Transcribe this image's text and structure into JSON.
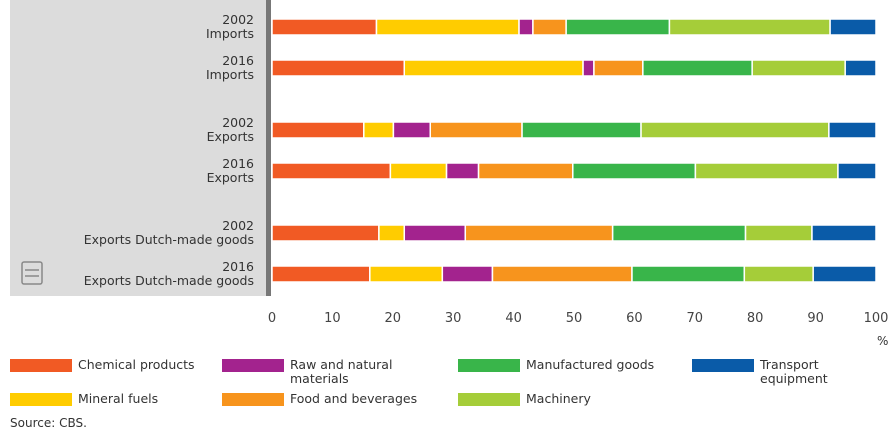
{
  "chart_data": {
    "type": "stacked-bar-horizontal",
    "categories": [
      "2002\nImports",
      "2016\nImports",
      "2002\nExports",
      "2016\nExports",
      "2002\nExports Dutch-made goods",
      "2016\nExports Dutch-made goods"
    ],
    "series": [
      {
        "name": "Chemical products",
        "color": "#f15a24",
        "values": [
          17.3,
          21.9,
          15.2,
          19.6,
          17.7,
          16.2
        ]
      },
      {
        "name": "Mineral fuels",
        "color": "#ffcc00",
        "values": [
          23.6,
          29.6,
          4.9,
          9.3,
          4.2,
          12.0
        ]
      },
      {
        "name": "Raw and natural\nmaterials",
        "color": "#a3238e",
        "values": [
          2.3,
          1.8,
          6.1,
          5.3,
          10.1,
          8.3
        ]
      },
      {
        "name": "Food and beverages",
        "color": "#f7941d",
        "values": [
          5.5,
          8.1,
          15.2,
          15.6,
          24.4,
          23.1
        ]
      },
      {
        "name": "Manufactured goods",
        "color": "#39b54a",
        "values": [
          17.1,
          18.1,
          19.7,
          20.3,
          22.0,
          18.6
        ]
      },
      {
        "name": "Machinery",
        "color": "#a5cd39",
        "values": [
          26.6,
          15.4,
          31.1,
          23.6,
          11.0,
          11.4
        ]
      },
      {
        "name": "Transport\nequipment",
        "color": "#0a5ba8",
        "values": [
          7.6,
          5.1,
          7.8,
          6.3,
          10.6,
          10.4
        ]
      }
    ],
    "xlim": [
      0,
      100
    ],
    "xticks": [
      0,
      10,
      20,
      30,
      40,
      50,
      60,
      70,
      80,
      90,
      100
    ],
    "x_unit": "%",
    "source": "Source: CBS."
  }
}
